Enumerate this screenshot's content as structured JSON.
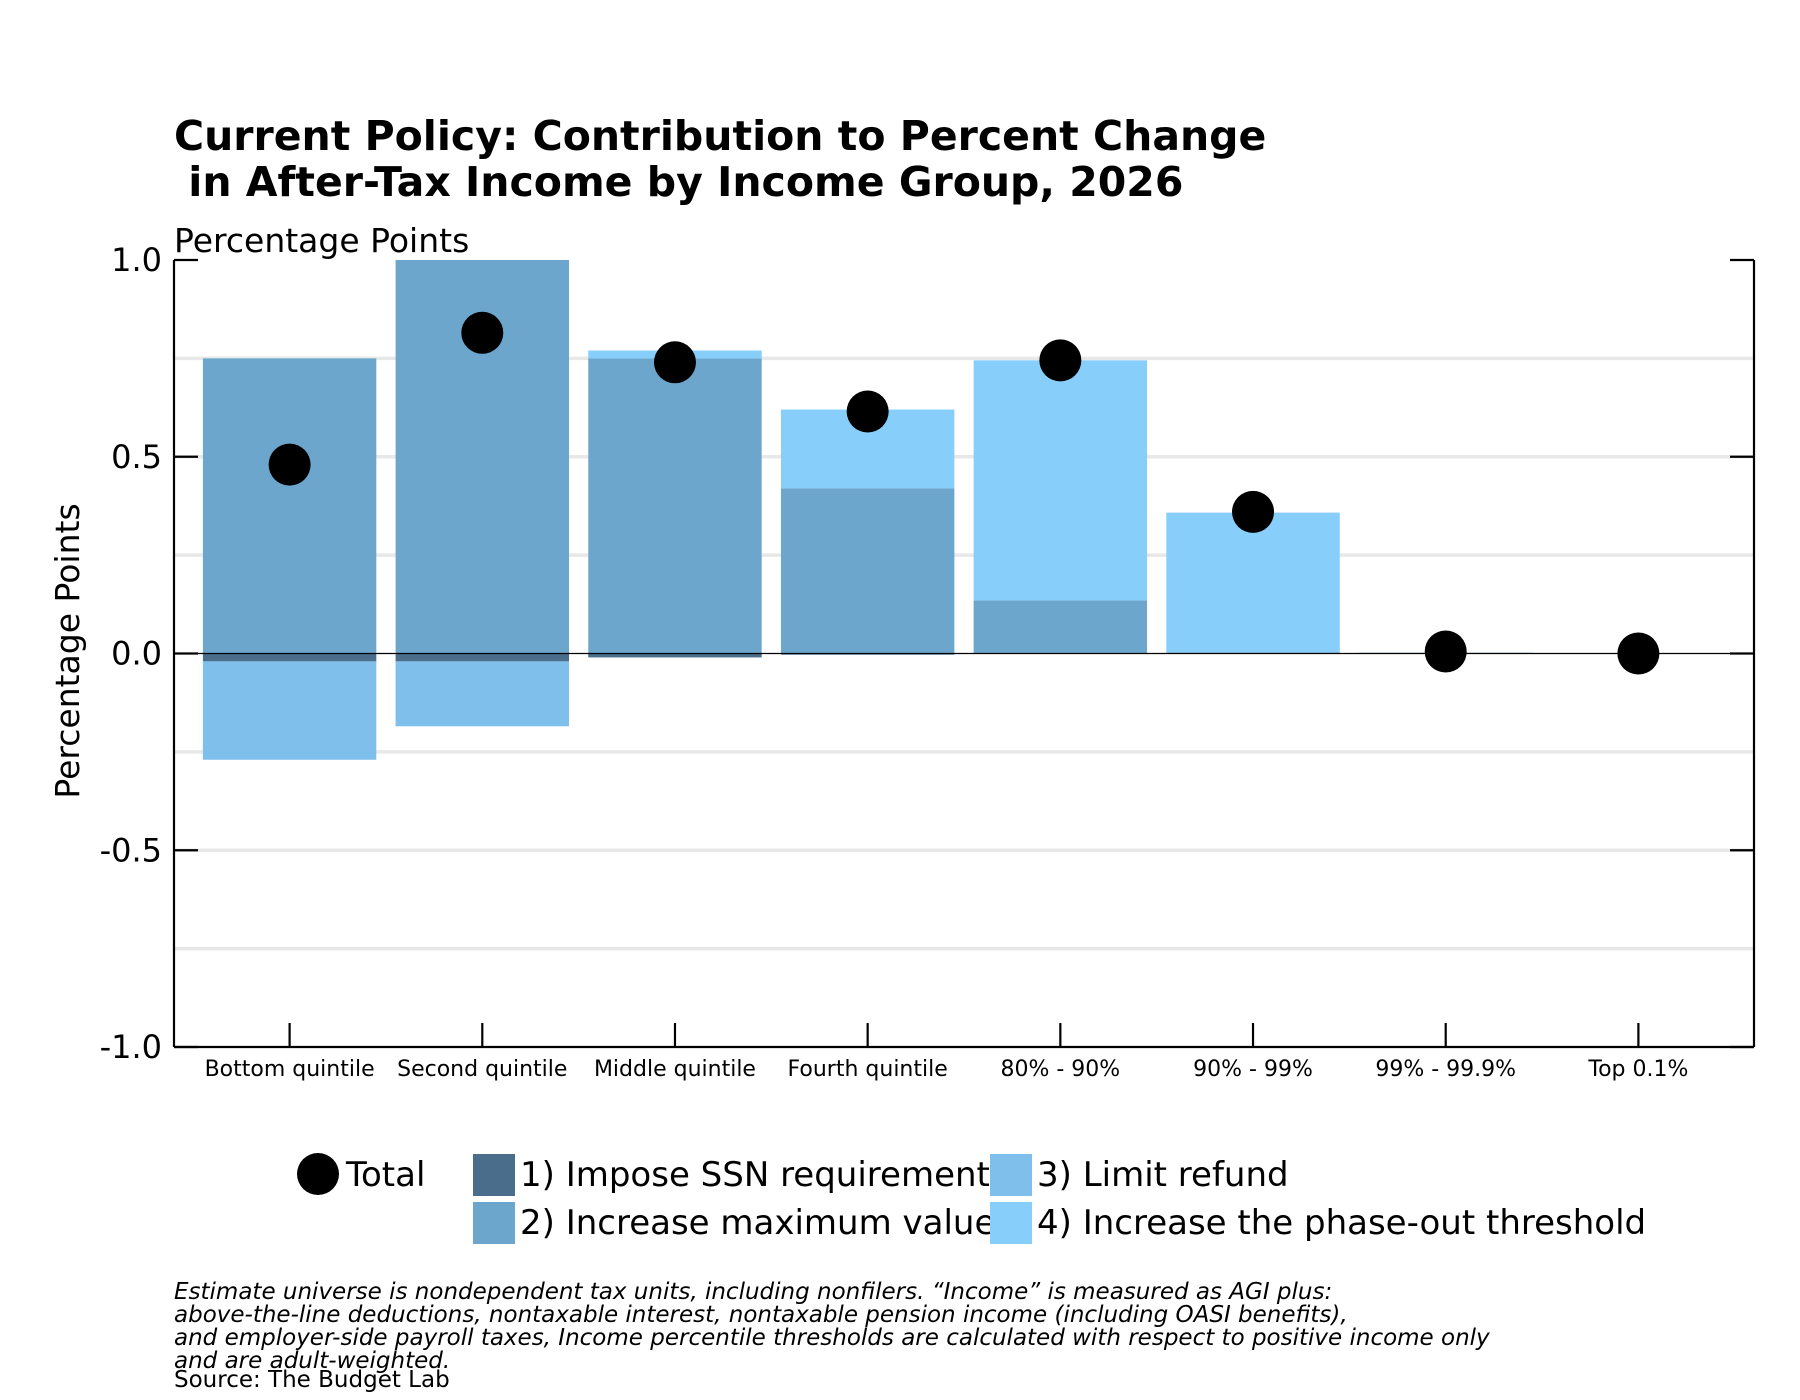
{
  "chart_data": {
    "type": "bar",
    "stacked": true,
    "title_lines": [
      "Current Policy: Contribution to Percent Change",
      " in After-Tax Income by Income Group, 2026"
    ],
    "subtitle": "Percentage Points",
    "xlabel": "",
    "ylabel": "Percentage Points",
    "ylim": [
      -1.0,
      1.0
    ],
    "yticks": [
      -1.0,
      -0.5,
      0.0,
      0.5,
      1.0
    ],
    "ytick_labels": [
      "-1.0",
      "-0.5",
      "0.0",
      "0.5",
      "1.0"
    ],
    "grid": true,
    "categories": [
      "Bottom quintile",
      "Second quintile",
      "Middle quintile",
      "Fourth quintile",
      "80% - 90%",
      "90% - 99%",
      "99% - 99.9%",
      "Top 0.1%"
    ],
    "series": [
      {
        "name": "1) Impose SSN requirement",
        "color": "#4a6d8c",
        "values": [
          -0.02,
          -0.02,
          -0.01,
          -0.003,
          0.0,
          0.0,
          0.0,
          0.0
        ]
      },
      {
        "name": "2) Increase maximum value",
        "color": "#6ca6cd",
        "values": [
          0.75,
          1.0,
          0.75,
          0.42,
          0.135,
          0.003,
          0.002,
          0.0
        ]
      },
      {
        "name": "3) Limit refund",
        "color": "#7fbfec",
        "values": [
          -0.25,
          -0.165,
          0.0,
          0.0,
          0.0,
          0.0,
          0.0,
          0.0
        ]
      },
      {
        "name": "4) Increase the phase-out threshold",
        "color": "#87cefa",
        "values": [
          0.0,
          0.0,
          0.02,
          0.2,
          0.61,
          0.355,
          0.0,
          0.0
        ]
      }
    ],
    "total": {
      "name": "Total",
      "color": "#000000",
      "values": [
        0.48,
        0.815,
        0.74,
        0.615,
        0.745,
        0.36,
        0.005,
        0.0
      ]
    },
    "legend_placement": "bottom",
    "notes": [
      "Estimate universe is nondependent tax units, including nonfilers. “Income” is measured as AGI plus:",
      "above-the-line deductions, nontaxable interest, nontaxable pension income (including OASI benefits),",
      "and employer-side payroll taxes, Income percentile thresholds are calculated with respect to positive income only",
      "and are adult-weighted."
    ],
    "source": "Source: The Budget Lab"
  },
  "colors": {
    "grid": "#e8e8e8",
    "axis": "#000000",
    "total_marker": "#000000"
  }
}
